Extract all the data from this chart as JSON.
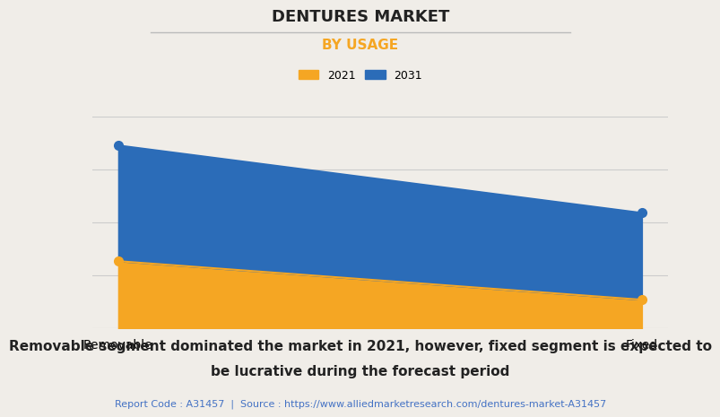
{
  "title": "DENTURES MARKET",
  "subtitle": "BY USAGE",
  "subtitle_color": "#F5A623",
  "categories": [
    "Removable",
    "Fixed"
  ],
  "series_2021": [
    3.5,
    1.5
  ],
  "series_2031": [
    9.5,
    6.0
  ],
  "color_2021": "#F5A623",
  "color_2031": "#2B6CB8",
  "background_color": "#F0EDE8",
  "plot_bg_color": "#F0EDE8",
  "ylim": [
    0,
    11
  ],
  "caption_line1": "Removable segment dominated the market in 2021, however, fixed segment is expected to",
  "caption_line2": "be lucrative during the forecast period",
  "report_text": "Report Code : A31457  |  Source : https://www.alliedmarketresearch.com/dentures-market-A31457",
  "report_color": "#4472C4",
  "title_fontsize": 13,
  "subtitle_fontsize": 11,
  "caption_fontsize": 11,
  "report_fontsize": 8,
  "grid_color": "#CCCCCC",
  "marker_size": 7,
  "tick_fontsize": 10
}
